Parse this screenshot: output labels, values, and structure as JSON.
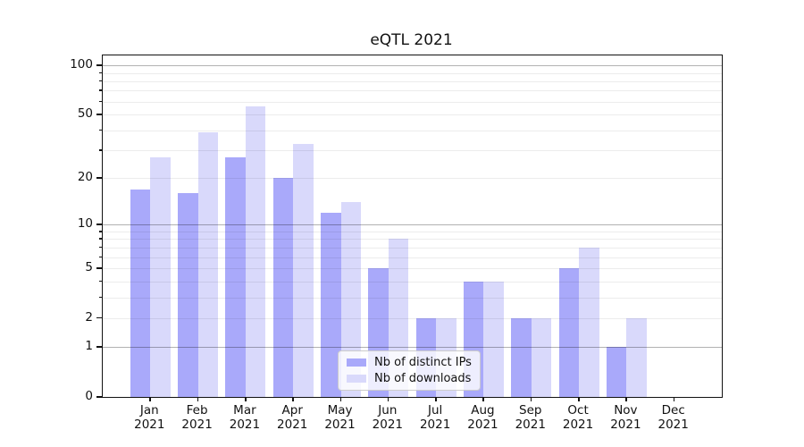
{
  "title": "eQTL 2021",
  "chart_data": {
    "type": "bar",
    "title": "eQTL 2021",
    "categories": [
      "Jan",
      "Feb",
      "Mar",
      "Apr",
      "May",
      "Jun",
      "Jul",
      "Aug",
      "Sep",
      "Oct",
      "Nov",
      "Dec"
    ],
    "category_year_label": "2021",
    "series": [
      {
        "name": "Nb of distinct IPs",
        "color": "#a9a9fa",
        "values": [
          17,
          16,
          27,
          20,
          12,
          5,
          2,
          4,
          2,
          5,
          1,
          0
        ]
      },
      {
        "name": "Nb of downloads",
        "color": "#d9d9fb",
        "values": [
          27,
          39,
          56,
          33,
          14,
          8,
          2,
          4,
          2,
          7,
          2,
          0
        ]
      }
    ],
    "y_scale": "log10(1+v)",
    "y_ticks": [
      0,
      1,
      2,
      5,
      10,
      20,
      50,
      100
    ],
    "y_major_gridlines": [
      1,
      10,
      100
    ],
    "y_minor_gridlines": [
      2,
      3,
      4,
      5,
      6,
      7,
      8,
      9,
      20,
      30,
      40,
      50,
      60,
      70,
      80,
      90
    ],
    "y_minor_tickmarks": [
      3,
      4,
      6,
      7,
      8,
      9,
      30,
      40,
      60,
      70,
      80,
      90
    ],
    "ylim": [
      0,
      115
    ],
    "grid": "on",
    "legend_position": "lower center",
    "legend_entries": [
      "Nb of distinct IPs",
      "Nb of downloads"
    ]
  },
  "colors": {
    "bar_dark": "#a9a9fa",
    "bar_light": "#d9d9fb",
    "axis": "#111111",
    "grid_major": "#b0b0b0",
    "grid_minor": "#ececec",
    "background": "#ffffff"
  }
}
